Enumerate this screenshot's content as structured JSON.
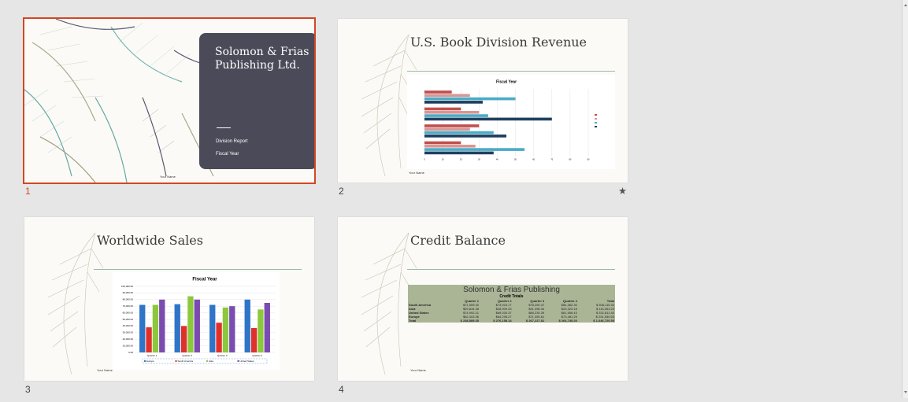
{
  "slides": [
    {
      "number": "1",
      "title": "Solomon & Frias Publishing Ltd.",
      "subtitle1": "Division Report",
      "subtitle2": "Fiscal Year",
      "footer": "Your Name"
    },
    {
      "number": "2",
      "title": "U.S. Book Division Revenue",
      "footer": "Your Name",
      "chart_data": {
        "type": "hbar",
        "title": "Fiscal Year",
        "categories": [
          null,
          null,
          null,
          null
        ],
        "series": [
          {
            "color": "#c0504d",
            "values": [
              15,
              20,
              30,
              20
            ]
          },
          {
            "color": "#d99694",
            "values": [
              25,
              30,
              25,
              28
            ]
          },
          {
            "color": "#4bacc6",
            "values": [
              50,
              35,
              38,
              55
            ]
          },
          {
            "color": "#1f3f5f",
            "values": [
              32,
              70,
              45,
              38
            ]
          }
        ],
        "xlim": [
          0,
          90
        ],
        "xticks": [
          0,
          10,
          20,
          30,
          40,
          50,
          60,
          70,
          80,
          90
        ],
        "grid": true
      }
    },
    {
      "number": "3",
      "title": "Worldwide Sales",
      "footer": "Your Name",
      "chart_data": {
        "type": "bar",
        "title": "Fiscal Year",
        "categories": [
          "Quarter 1",
          "Quarter 2",
          "Quarter 3",
          "Quarter 4"
        ],
        "series": [
          {
            "name": "Europe",
            "color": "#2e75c8",
            "values": [
              72000,
              73000,
              72000,
              80000
            ]
          },
          {
            "name": "South America",
            "color": "#e0302a",
            "values": [
              38000,
              40000,
              45000,
              37000
            ]
          },
          {
            "name": "Asia",
            "color": "#8cc83c",
            "values": [
              72000,
              85000,
              68000,
              65000
            ]
          },
          {
            "name": "United States",
            "color": "#7a4bb0",
            "values": [
              80000,
              80000,
              70000,
              75000
            ]
          }
        ],
        "ylim": [
          0,
          100000
        ],
        "yticks": [
          {
            "value": 0,
            "label": "0.00"
          },
          {
            "value": 10000,
            "label": "10,000.00"
          },
          {
            "value": 20000,
            "label": "20,000.00"
          },
          {
            "value": 30000,
            "label": "30,000.00"
          },
          {
            "value": 40000,
            "label": "40,000.00"
          },
          {
            "value": 50000,
            "label": "50,000.00"
          },
          {
            "value": 60000,
            "label": "60,000.00"
          },
          {
            "value": 70000,
            "label": "70,000.00"
          },
          {
            "value": 80000,
            "label": "80,000.00"
          },
          {
            "value": 90000,
            "label": "90,000.00"
          },
          {
            "value": 100000,
            "label": "100,000.00"
          }
        ],
        "grid": true
      }
    },
    {
      "number": "4",
      "title": "Credit Balance",
      "footer": "Your Name",
      "table": {
        "title": "Solomon & Frias Publishing",
        "subtitle": "Credit Totals",
        "header": [
          "Quarter 1",
          "Quarter 2",
          "Quarter 3",
          "Quarter 4",
          "Total"
        ],
        "rows": [
          [
            "South America",
            "$71,559.40",
            "$73,923.17",
            "$78,250.47",
            "$84,382.30",
            "$ 308,115.34"
          ],
          [
            "Asia",
            "$29,634.38",
            "$28,909.33",
            "$31,396.34",
            "$25,323.18",
            "$ 115,263.23"
          ],
          [
            "United States",
            "$74,992.21",
            "$89,030.37",
            "$86,230.39",
            "$81,558.43",
            "$ 331,811.40"
          ],
          [
            "Europe",
            "$62,403.36",
            "$84,295.27",
            "$71,350.61",
            "$73,481.29",
            "$ 291,530.53"
          ],
          [
            "Total",
            "$ 238,589.35",
            "$ 276,158.14",
            "$ 267,227.81",
            "$ 264,745.20",
            "$ 1,046,720.50"
          ]
        ]
      }
    }
  ]
}
